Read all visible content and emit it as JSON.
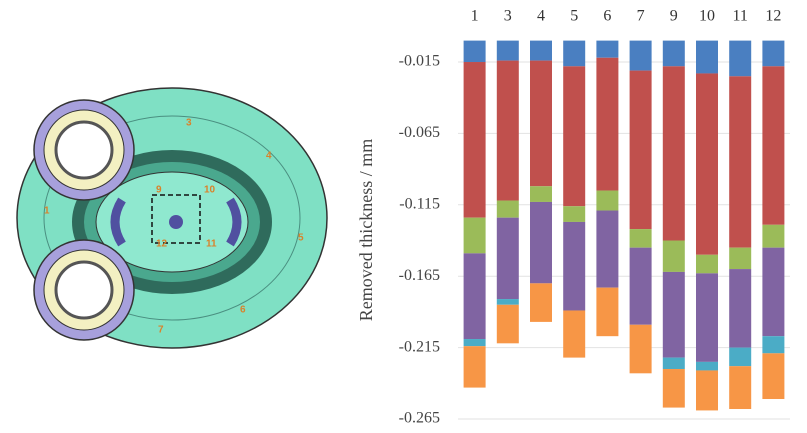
{
  "diagram": {
    "labels": [
      "1",
      "3",
      "4",
      "5",
      "6",
      "7",
      "9",
      "10",
      "11",
      "12"
    ]
  },
  "chart_data": {
    "type": "bar",
    "stacked": true,
    "y_label": "Removed thickness / mm",
    "categories": [
      "1",
      "3",
      "4",
      "5",
      "6",
      "7",
      "9",
      "10",
      "11",
      "12"
    ],
    "series": [
      {
        "color": "#4a7fc1",
        "values": [
          -0.015,
          -0.014,
          -0.014,
          -0.018,
          -0.012,
          -0.021,
          -0.018,
          -0.023,
          -0.025,
          -0.018
        ]
      },
      {
        "color": "#c0504d",
        "values": [
          -0.109,
          -0.098,
          -0.088,
          -0.098,
          -0.093,
          -0.111,
          -0.122,
          -0.127,
          -0.12,
          -0.111
        ]
      },
      {
        "color": "#9bbb59",
        "values": [
          -0.025,
          -0.012,
          -0.011,
          -0.011,
          -0.014,
          -0.013,
          -0.022,
          -0.013,
          -0.015,
          -0.016
        ]
      },
      {
        "color": "#8064a2",
        "values": [
          -0.06,
          -0.057,
          -0.057,
          -0.062,
          -0.054,
          -0.054,
          -0.06,
          -0.062,
          -0.055,
          -0.062
        ]
      },
      {
        "color": "#4bacc6",
        "values": [
          -0.005,
          -0.004,
          0,
          0,
          0,
          0,
          -0.008,
          -0.006,
          -0.013,
          -0.012
        ]
      },
      {
        "color": "#f79646",
        "values": [
          -0.029,
          -0.027,
          -0.027,
          -0.033,
          -0.034,
          -0.034,
          -0.027,
          -0.028,
          -0.03,
          -0.032
        ]
      }
    ],
    "ylim": [
      -0.265,
      0
    ],
    "yticks": [
      -0.015,
      -0.065,
      -0.115,
      -0.165,
      -0.215,
      -0.265
    ],
    "grid": true
  }
}
